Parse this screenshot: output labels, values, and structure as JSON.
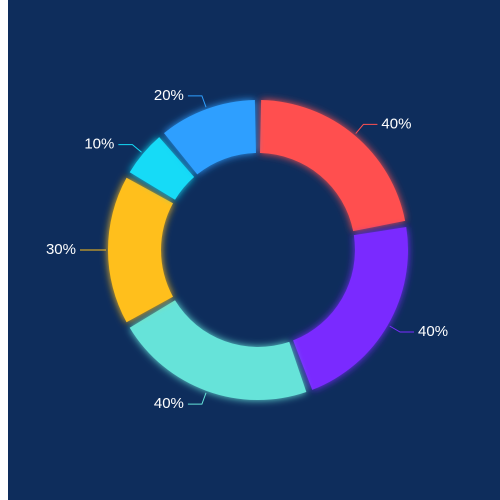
{
  "chart_data": {
    "type": "donut",
    "values": [
      40,
      40,
      40,
      30,
      10,
      20
    ],
    "value_labels": [
      "40%",
      "40%",
      "40%",
      "30%",
      "10%",
      "20%"
    ],
    "colors": [
      "#ff5050",
      "#7a2cff",
      "#66e3d9",
      "#ffbf1a",
      "#14dbf7",
      "#2e9fff"
    ],
    "background": "#0e2d5c"
  }
}
